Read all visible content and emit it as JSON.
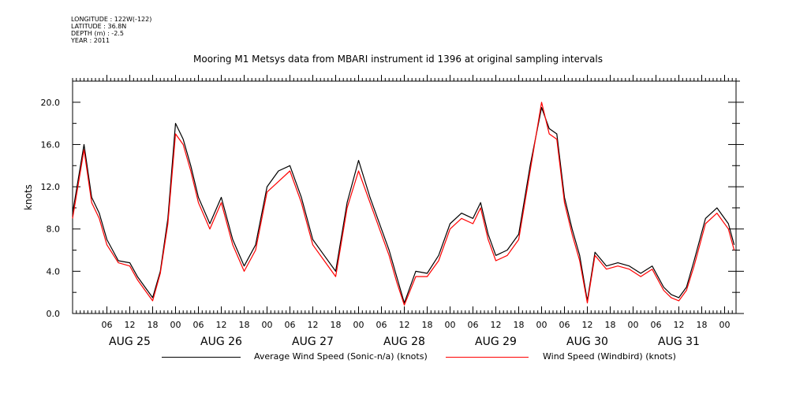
{
  "meta": {
    "lines": [
      "LONGITUDE : 122W(-122)",
      "LATITUDE : 36.8N",
      "DEPTH (m) : -2.5",
      "YEAR : 2011"
    ]
  },
  "chart_data": {
    "type": "line",
    "title": "Mooring M1 Metsys data from MBARI instrument id 1396 at original sampling intervals",
    "xlabel": "",
    "ylabel": "knots",
    "xlim": [
      "2011-08-24T21:00",
      "2011-09-01T03:00"
    ],
    "ylim": [
      0,
      22
    ],
    "yticks": [
      0,
      4,
      8,
      12,
      16,
      20
    ],
    "ytick_labels": [
      "0.0",
      "4.0",
      "8.0",
      "12.0",
      "16.0",
      "20.0"
    ],
    "xtick_hours": [
      "06",
      "12",
      "18",
      "00",
      "06",
      "12",
      "18",
      "00",
      "06",
      "12",
      "18",
      "00",
      "06",
      "12",
      "18",
      "00",
      "06",
      "12",
      "18",
      "00",
      "06",
      "12",
      "18",
      "00",
      "06",
      "12",
      "18",
      "00"
    ],
    "day_labels": [
      "AUG 25",
      "AUG 26",
      "AUG 27",
      "AUG 28",
      "AUG 29",
      "AUG 30",
      "AUG 31"
    ],
    "grid": false,
    "legend": "bottom",
    "series": [
      {
        "name": "Average Wind Speed (Sonic-n/a) (knots)",
        "color": "#000000",
        "x": [
          "2011-08-24T21:00",
          "2011-08-25T00:00",
          "2011-08-25T02:00",
          "2011-08-25T04:00",
          "2011-08-25T06:00",
          "2011-08-25T09:00",
          "2011-08-25T12:00",
          "2011-08-25T14:00",
          "2011-08-25T16:00",
          "2011-08-25T18:00",
          "2011-08-25T20:00",
          "2011-08-25T22:00",
          "2011-08-26T00:00",
          "2011-08-26T02:00",
          "2011-08-26T04:00",
          "2011-08-26T06:00",
          "2011-08-26T09:00",
          "2011-08-26T12:00",
          "2011-08-26T15:00",
          "2011-08-26T18:00",
          "2011-08-26T21:00",
          "2011-08-27T00:00",
          "2011-08-27T03:00",
          "2011-08-27T06:00",
          "2011-08-27T09:00",
          "2011-08-27T12:00",
          "2011-08-27T15:00",
          "2011-08-27T18:00",
          "2011-08-27T21:00",
          "2011-08-28T00:00",
          "2011-08-28T03:00",
          "2011-08-28T06:00",
          "2011-08-28T08:00",
          "2011-08-28T10:00",
          "2011-08-28T12:00",
          "2011-08-28T15:00",
          "2011-08-28T18:00",
          "2011-08-28T21:00",
          "2011-08-29T00:00",
          "2011-08-29T03:00",
          "2011-08-29T06:00",
          "2011-08-29T08:00",
          "2011-08-29T10:00",
          "2011-08-29T12:00",
          "2011-08-29T15:00",
          "2011-08-29T18:00",
          "2011-08-29T21:00",
          "2011-08-30T00:00",
          "2011-08-30T02:00",
          "2011-08-30T04:00",
          "2011-08-30T06:00",
          "2011-08-30T08:00",
          "2011-08-30T10:00",
          "2011-08-30T12:00",
          "2011-08-30T14:00",
          "2011-08-30T17:00",
          "2011-08-30T20:00",
          "2011-08-30T23:00",
          "2011-08-31T02:00",
          "2011-08-31T05:00",
          "2011-08-31T08:00",
          "2011-08-31T10:00",
          "2011-08-31T12:00",
          "2011-08-31T14:00",
          "2011-08-31T16:00",
          "2011-08-31T19:00",
          "2011-08-31T22:00",
          "2011-09-01T01:00",
          "2011-09-01T02:30"
        ],
        "values": [
          9.5,
          16.0,
          11.0,
          9.5,
          7.0,
          5.0,
          4.8,
          3.5,
          2.5,
          1.5,
          4.0,
          9.0,
          18.0,
          16.5,
          14.0,
          11.0,
          8.5,
          11.0,
          7.0,
          4.5,
          6.5,
          12.0,
          13.5,
          14.0,
          11.0,
          7.0,
          5.5,
          4.0,
          10.5,
          14.5,
          11.0,
          8.0,
          6.0,
          3.5,
          1.0,
          4.0,
          3.8,
          5.5,
          8.5,
          9.5,
          9.0,
          10.5,
          7.5,
          5.5,
          6.0,
          7.5,
          14.0,
          19.5,
          17.5,
          17.0,
          11.0,
          8.0,
          5.5,
          1.2,
          5.8,
          4.5,
          4.8,
          4.5,
          3.8,
          4.5,
          2.5,
          1.8,
          1.5,
          2.5,
          5.0,
          9.0,
          10.0,
          8.5,
          6.5
        ]
      },
      {
        "name": "Wind Speed (Windbird) (knots)",
        "color": "#ff0000",
        "x": [
          "2011-08-24T21:00",
          "2011-08-25T00:00",
          "2011-08-25T02:00",
          "2011-08-25T04:00",
          "2011-08-25T06:00",
          "2011-08-25T09:00",
          "2011-08-25T12:00",
          "2011-08-25T14:00",
          "2011-08-25T16:00",
          "2011-08-25T18:00",
          "2011-08-25T20:00",
          "2011-08-25T22:00",
          "2011-08-26T00:00",
          "2011-08-26T02:00",
          "2011-08-26T04:00",
          "2011-08-26T06:00",
          "2011-08-26T09:00",
          "2011-08-26T12:00",
          "2011-08-26T15:00",
          "2011-08-26T18:00",
          "2011-08-26T21:00",
          "2011-08-27T00:00",
          "2011-08-27T03:00",
          "2011-08-27T06:00",
          "2011-08-27T09:00",
          "2011-08-27T12:00",
          "2011-08-27T15:00",
          "2011-08-27T18:00",
          "2011-08-27T21:00",
          "2011-08-28T00:00",
          "2011-08-28T03:00",
          "2011-08-28T06:00",
          "2011-08-28T08:00",
          "2011-08-28T10:00",
          "2011-08-28T12:00",
          "2011-08-28T15:00",
          "2011-08-28T18:00",
          "2011-08-28T21:00",
          "2011-08-29T00:00",
          "2011-08-29T03:00",
          "2011-08-29T06:00",
          "2011-08-29T08:00",
          "2011-08-29T10:00",
          "2011-08-29T12:00",
          "2011-08-29T15:00",
          "2011-08-29T18:00",
          "2011-08-29T21:00",
          "2011-08-30T00:00",
          "2011-08-30T02:00",
          "2011-08-30T04:00",
          "2011-08-30T06:00",
          "2011-08-30T08:00",
          "2011-08-30T10:00",
          "2011-08-30T12:00",
          "2011-08-30T14:00",
          "2011-08-30T17:00",
          "2011-08-30T20:00",
          "2011-08-30T23:00",
          "2011-08-31T02:00",
          "2011-08-31T05:00",
          "2011-08-31T08:00",
          "2011-08-31T10:00",
          "2011-08-31T12:00",
          "2011-08-31T14:00",
          "2011-08-31T16:00",
          "2011-08-31T19:00",
          "2011-08-31T22:00",
          "2011-09-01T01:00",
          "2011-09-01T02:30"
        ],
        "values": [
          9.0,
          15.5,
          10.5,
          9.0,
          6.5,
          4.8,
          4.5,
          3.2,
          2.2,
          1.2,
          3.8,
          8.5,
          17.0,
          16.0,
          13.5,
          10.5,
          8.0,
          10.5,
          6.5,
          4.0,
          6.0,
          11.5,
          12.5,
          13.5,
          10.5,
          6.5,
          5.0,
          3.5,
          10.0,
          13.5,
          10.5,
          7.5,
          5.5,
          3.0,
          0.8,
          3.5,
          3.5,
          5.0,
          8.0,
          9.0,
          8.5,
          10.0,
          7.0,
          5.0,
          5.5,
          7.0,
          13.5,
          20.0,
          17.0,
          16.5,
          10.5,
          7.5,
          5.0,
          1.0,
          5.5,
          4.2,
          4.5,
          4.2,
          3.5,
          4.2,
          2.2,
          1.5,
          1.2,
          2.2,
          4.5,
          8.5,
          9.5,
          8.0,
          6.0
        ]
      }
    ]
  }
}
